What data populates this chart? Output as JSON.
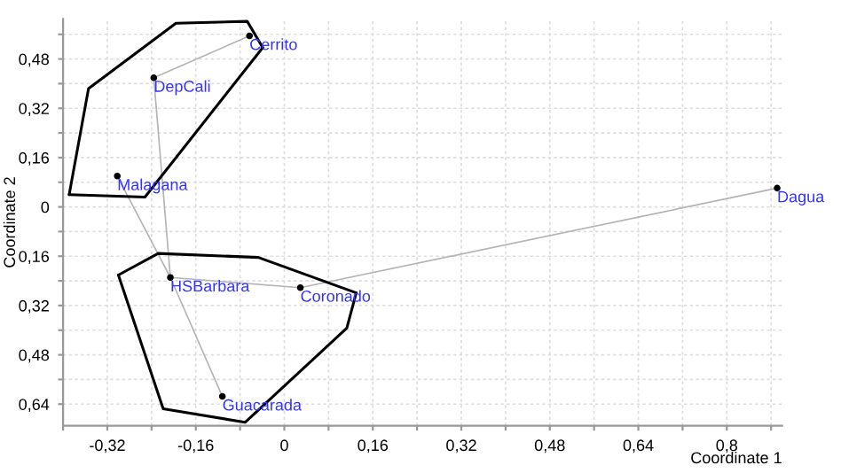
{
  "chart_data": {
    "type": "scatter",
    "xlabel": "Coordinate 1",
    "ylabel": "Coordinate 2",
    "xlim": [
      -0.4,
      0.9
    ],
    "ylim": [
      -0.71,
      0.61
    ],
    "xticks": [
      {
        "value": -0.4,
        "label": null
      },
      {
        "value": -0.32,
        "label": "-0,32"
      },
      {
        "value": -0.24,
        "label": null
      },
      {
        "value": -0.16,
        "label": "-0,16"
      },
      {
        "value": -0.08,
        "label": null
      },
      {
        "value": 0,
        "label": "0"
      },
      {
        "value": 0.08,
        "label": null
      },
      {
        "value": 0.16,
        "label": "0,16"
      },
      {
        "value": 0.24,
        "label": null
      },
      {
        "value": 0.32,
        "label": "0,32"
      },
      {
        "value": 0.4,
        "label": null
      },
      {
        "value": 0.48,
        "label": "0,48"
      },
      {
        "value": 0.56,
        "label": null
      },
      {
        "value": 0.64,
        "label": "0,64"
      },
      {
        "value": 0.72,
        "label": null
      },
      {
        "value": 0.8,
        "label": "0,8"
      },
      {
        "value": 0.88,
        "label": null
      }
    ],
    "yticks": [
      {
        "value": -0.64,
        "label": "0,64"
      },
      {
        "value": -0.56,
        "label": null
      },
      {
        "value": -0.48,
        "label": "0,48"
      },
      {
        "value": -0.4,
        "label": null
      },
      {
        "value": -0.32,
        "label": "0,32"
      },
      {
        "value": -0.24,
        "label": null
      },
      {
        "value": -0.16,
        "label": "0,16"
      },
      {
        "value": -0.08,
        "label": null
      },
      {
        "value": 0,
        "label": "0"
      },
      {
        "value": 0.08,
        "label": null
      },
      {
        "value": 0.16,
        "label": "0,16"
      },
      {
        "value": 0.24,
        "label": null
      },
      {
        "value": 0.32,
        "label": "0,32"
      },
      {
        "value": 0.4,
        "label": null
      },
      {
        "value": 0.48,
        "label": "0,48"
      },
      {
        "value": 0.56,
        "label": null
      }
    ],
    "grid": true,
    "series": [
      {
        "type": "line",
        "color": "#b4b4b4",
        "x": [
          -0.063,
          -0.236,
          -0.206,
          0.029,
          0.891
        ],
        "values": [
          0.555,
          0.419,
          -0.229,
          -0.262,
          0.061
        ]
      },
      {
        "type": "line",
        "color": "#b4b4b4",
        "x": [
          -0.302,
          -0.206
        ],
        "values": [
          0.1,
          -0.229
        ]
      },
      {
        "type": "line",
        "color": "#b4b4b4",
        "x": [
          -0.206,
          -0.112
        ],
        "values": [
          -0.229,
          -0.615
        ]
      },
      {
        "type": "line",
        "color": "#000000",
        "x": [
          -0.389,
          -0.354,
          -0.196,
          -0.067,
          -0.039
        ],
        "values": [
          0.04,
          0.384,
          0.596,
          0.602,
          0.517
        ]
      },
      {
        "type": "line",
        "color": "#000000",
        "x": [
          -0.389,
          -0.252,
          -0.039
        ],
        "values": [
          0.04,
          0.032,
          0.517
        ]
      },
      {
        "type": "line",
        "color": "#000000",
        "x": [
          -0.3,
          -0.228,
          -0.047,
          0.13
        ],
        "values": [
          -0.221,
          -0.151,
          -0.164,
          -0.279
        ]
      },
      {
        "type": "line",
        "color": "#000000",
        "x": [
          -0.3,
          -0.219,
          -0.071,
          0.113,
          0.13
        ],
        "values": [
          -0.221,
          -0.655,
          -0.699,
          -0.393,
          -0.279
        ]
      },
      {
        "color": "#000000",
        "marker": "circle",
        "x": [
          -0.063,
          -0.236,
          -0.302,
          -0.206,
          0.029,
          -0.112,
          0.891
        ],
        "values": [
          0.555,
          0.419,
          0.1,
          -0.229,
          -0.262,
          -0.615,
          0.061
        ]
      }
    ],
    "annotations": [
      {
        "text": "Cerrito",
        "x": -0.063,
        "y": 0.555
      },
      {
        "text": "DepCali",
        "x": -0.236,
        "y": 0.419
      },
      {
        "text": "Malagana",
        "x": -0.302,
        "y": 0.1
      },
      {
        "text": "HSBarbara",
        "x": -0.206,
        "y": -0.229
      },
      {
        "text": "Coronado",
        "x": 0.029,
        "y": -0.262
      },
      {
        "text": "Guacarada",
        "x": -0.112,
        "y": -0.615
      },
      {
        "text": "Dagua",
        "x": 0.891,
        "y": 0.061
      }
    ]
  }
}
